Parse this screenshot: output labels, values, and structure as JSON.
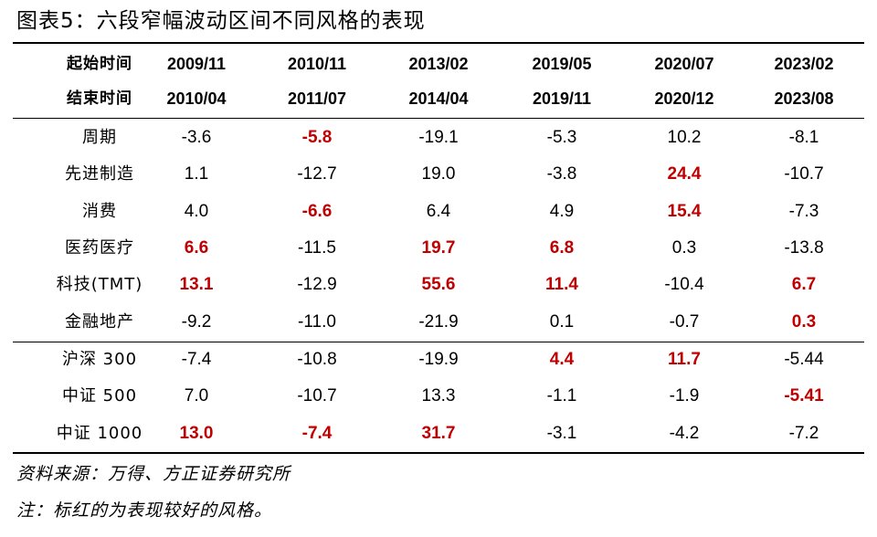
{
  "title": "图表5：六段窄幅波动区间不同风格的表现",
  "highlight_color": "#c00000",
  "header": {
    "start_label": "起始时间",
    "end_label": "结束时间",
    "start_dates": [
      "2009/11",
      "2010/11",
      "2013/02",
      "2019/05",
      "2020/07",
      "2023/02"
    ],
    "end_dates": [
      "2010/04",
      "2011/07",
      "2014/04",
      "2019/11",
      "2020/12",
      "2023/08"
    ]
  },
  "rows": [
    {
      "label": "周期",
      "values": [
        "-3.6",
        "-5.8",
        "-19.1",
        "-5.3",
        "10.2",
        "-8.1"
      ],
      "highlight": [
        false,
        true,
        false,
        false,
        false,
        false
      ]
    },
    {
      "label": "先进制造",
      "values": [
        "1.1",
        "-12.7",
        "19.0",
        "-3.8",
        "24.4",
        "-10.7"
      ],
      "highlight": [
        false,
        false,
        false,
        false,
        true,
        false
      ]
    },
    {
      "label": "消费",
      "values": [
        "4.0",
        "-6.6",
        "6.4",
        "4.9",
        "15.4",
        "-7.3"
      ],
      "highlight": [
        false,
        true,
        false,
        false,
        true,
        false
      ]
    },
    {
      "label": "医药医疗",
      "values": [
        "6.6",
        "-11.5",
        "19.7",
        "6.8",
        "0.3",
        "-13.8"
      ],
      "highlight": [
        true,
        false,
        true,
        true,
        false,
        false
      ]
    },
    {
      "label": "科技(TMT)",
      "values": [
        "13.1",
        "-12.9",
        "55.6",
        "11.4",
        "-10.4",
        "6.7"
      ],
      "highlight": [
        true,
        false,
        true,
        true,
        false,
        true
      ]
    },
    {
      "label": "金融地产",
      "values": [
        "-9.2",
        "-11.0",
        "-21.9",
        "0.1",
        "-0.7",
        "0.3"
      ],
      "highlight": [
        false,
        false,
        false,
        false,
        false,
        true
      ]
    },
    {
      "label": "沪深 300",
      "values": [
        "-7.4",
        "-10.8",
        "-19.9",
        "4.4",
        "11.7",
        "-5.44"
      ],
      "highlight": [
        false,
        false,
        false,
        true,
        true,
        false
      ]
    },
    {
      "label": "中证 500",
      "values": [
        "7.0",
        "-10.7",
        "13.3",
        "-1.1",
        "-1.9",
        "-5.41"
      ],
      "highlight": [
        false,
        false,
        false,
        false,
        false,
        true
      ]
    },
    {
      "label": "中证 1000",
      "values": [
        "13.0",
        "-7.4",
        "31.7",
        "-3.1",
        "-4.2",
        "-7.2"
      ],
      "highlight": [
        true,
        true,
        true,
        false,
        false,
        false
      ]
    }
  ],
  "footnotes": {
    "source": "资料来源：万得、方正证券研究所",
    "note": "注：标红的为表现较好的风格。"
  }
}
